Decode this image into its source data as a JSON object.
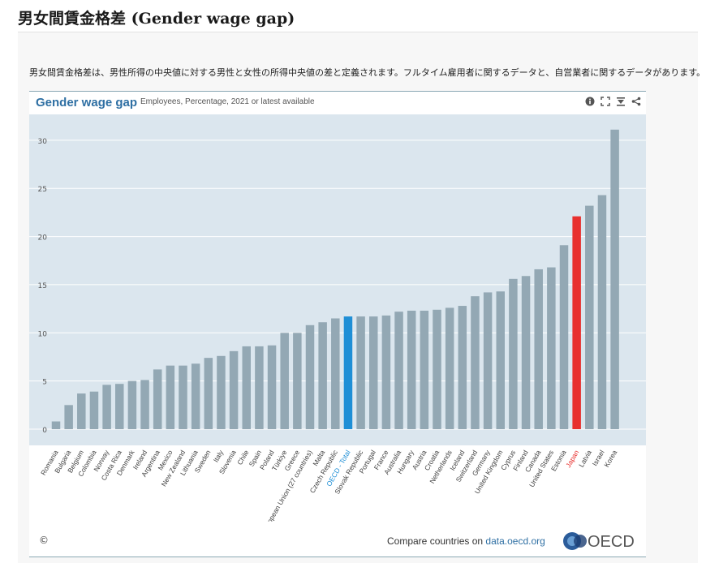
{
  "page": {
    "title": "男女間賃金格差 (Gender wage gap)",
    "intro": "男女間賃金格差は、男性所得の中央値に対する男性と女性の所得中央値の差と定義されます。フルタイム雇用者に関するデータと、自営業者に関するデータがあります。"
  },
  "widget": {
    "title": "Gender wage gap",
    "subtitle": "Employees, Percentage, 2021 or latest available",
    "icons": [
      "info-icon",
      "expand-icon",
      "download-icon",
      "share-icon"
    ],
    "footer": {
      "copyright": "©",
      "compare_prefix": "Compare countries on ",
      "compare_link": "data.oecd.org",
      "logo_text": "OECD"
    }
  },
  "chart_data": {
    "type": "bar",
    "title": "",
    "xlabel": "",
    "ylabel": "",
    "ylim": [
      0,
      32
    ],
    "yticks": [
      0,
      5,
      10,
      15,
      20,
      25,
      30
    ],
    "grid": true,
    "colors": {
      "default": "#93a8b4",
      "oecd": "#1f8fd6",
      "japan": "#e8302e",
      "background": "#dbe6ee"
    },
    "highlight": {
      "OECD - Total": "oecd",
      "Japan": "japan"
    },
    "categories": [
      "Romania",
      "Bulgaria",
      "Belgium",
      "Colombia",
      "Norway",
      "Costa Rica",
      "Denmark",
      "Ireland",
      "Argentina",
      "Mexico",
      "New Zealand",
      "Lithuania",
      "Sweden",
      "Italy",
      "Slovenia",
      "Chile",
      "Spain",
      "Poland",
      "Türkiye",
      "Greece",
      "European Union (27 countries)",
      "Malta",
      "Czech Republic",
      "OECD - Total",
      "Slovak Republic",
      "Portugal",
      "France",
      "Australia",
      "Hungary",
      "Austria",
      "Croatia",
      "Netherlands",
      "Iceland",
      "Switzerland",
      "Germany",
      "United Kingdom",
      "Cyprus",
      "Finland",
      "Canada",
      "United States",
      "Estonia",
      "Japan",
      "Latvia",
      "Israel",
      "Korea"
    ],
    "values": [
      0.8,
      2.5,
      3.7,
      3.9,
      4.6,
      4.7,
      5.0,
      5.1,
      6.2,
      6.6,
      6.6,
      6.8,
      7.4,
      7.6,
      8.1,
      8.6,
      8.6,
      8.7,
      10.0,
      10.0,
      10.8,
      11.1,
      11.5,
      11.7,
      11.7,
      11.7,
      11.8,
      12.2,
      12.3,
      12.3,
      12.4,
      12.6,
      12.8,
      13.8,
      14.2,
      14.3,
      15.6,
      15.9,
      16.6,
      16.8,
      19.1,
      22.1,
      23.2,
      24.3,
      31.1
    ]
  }
}
